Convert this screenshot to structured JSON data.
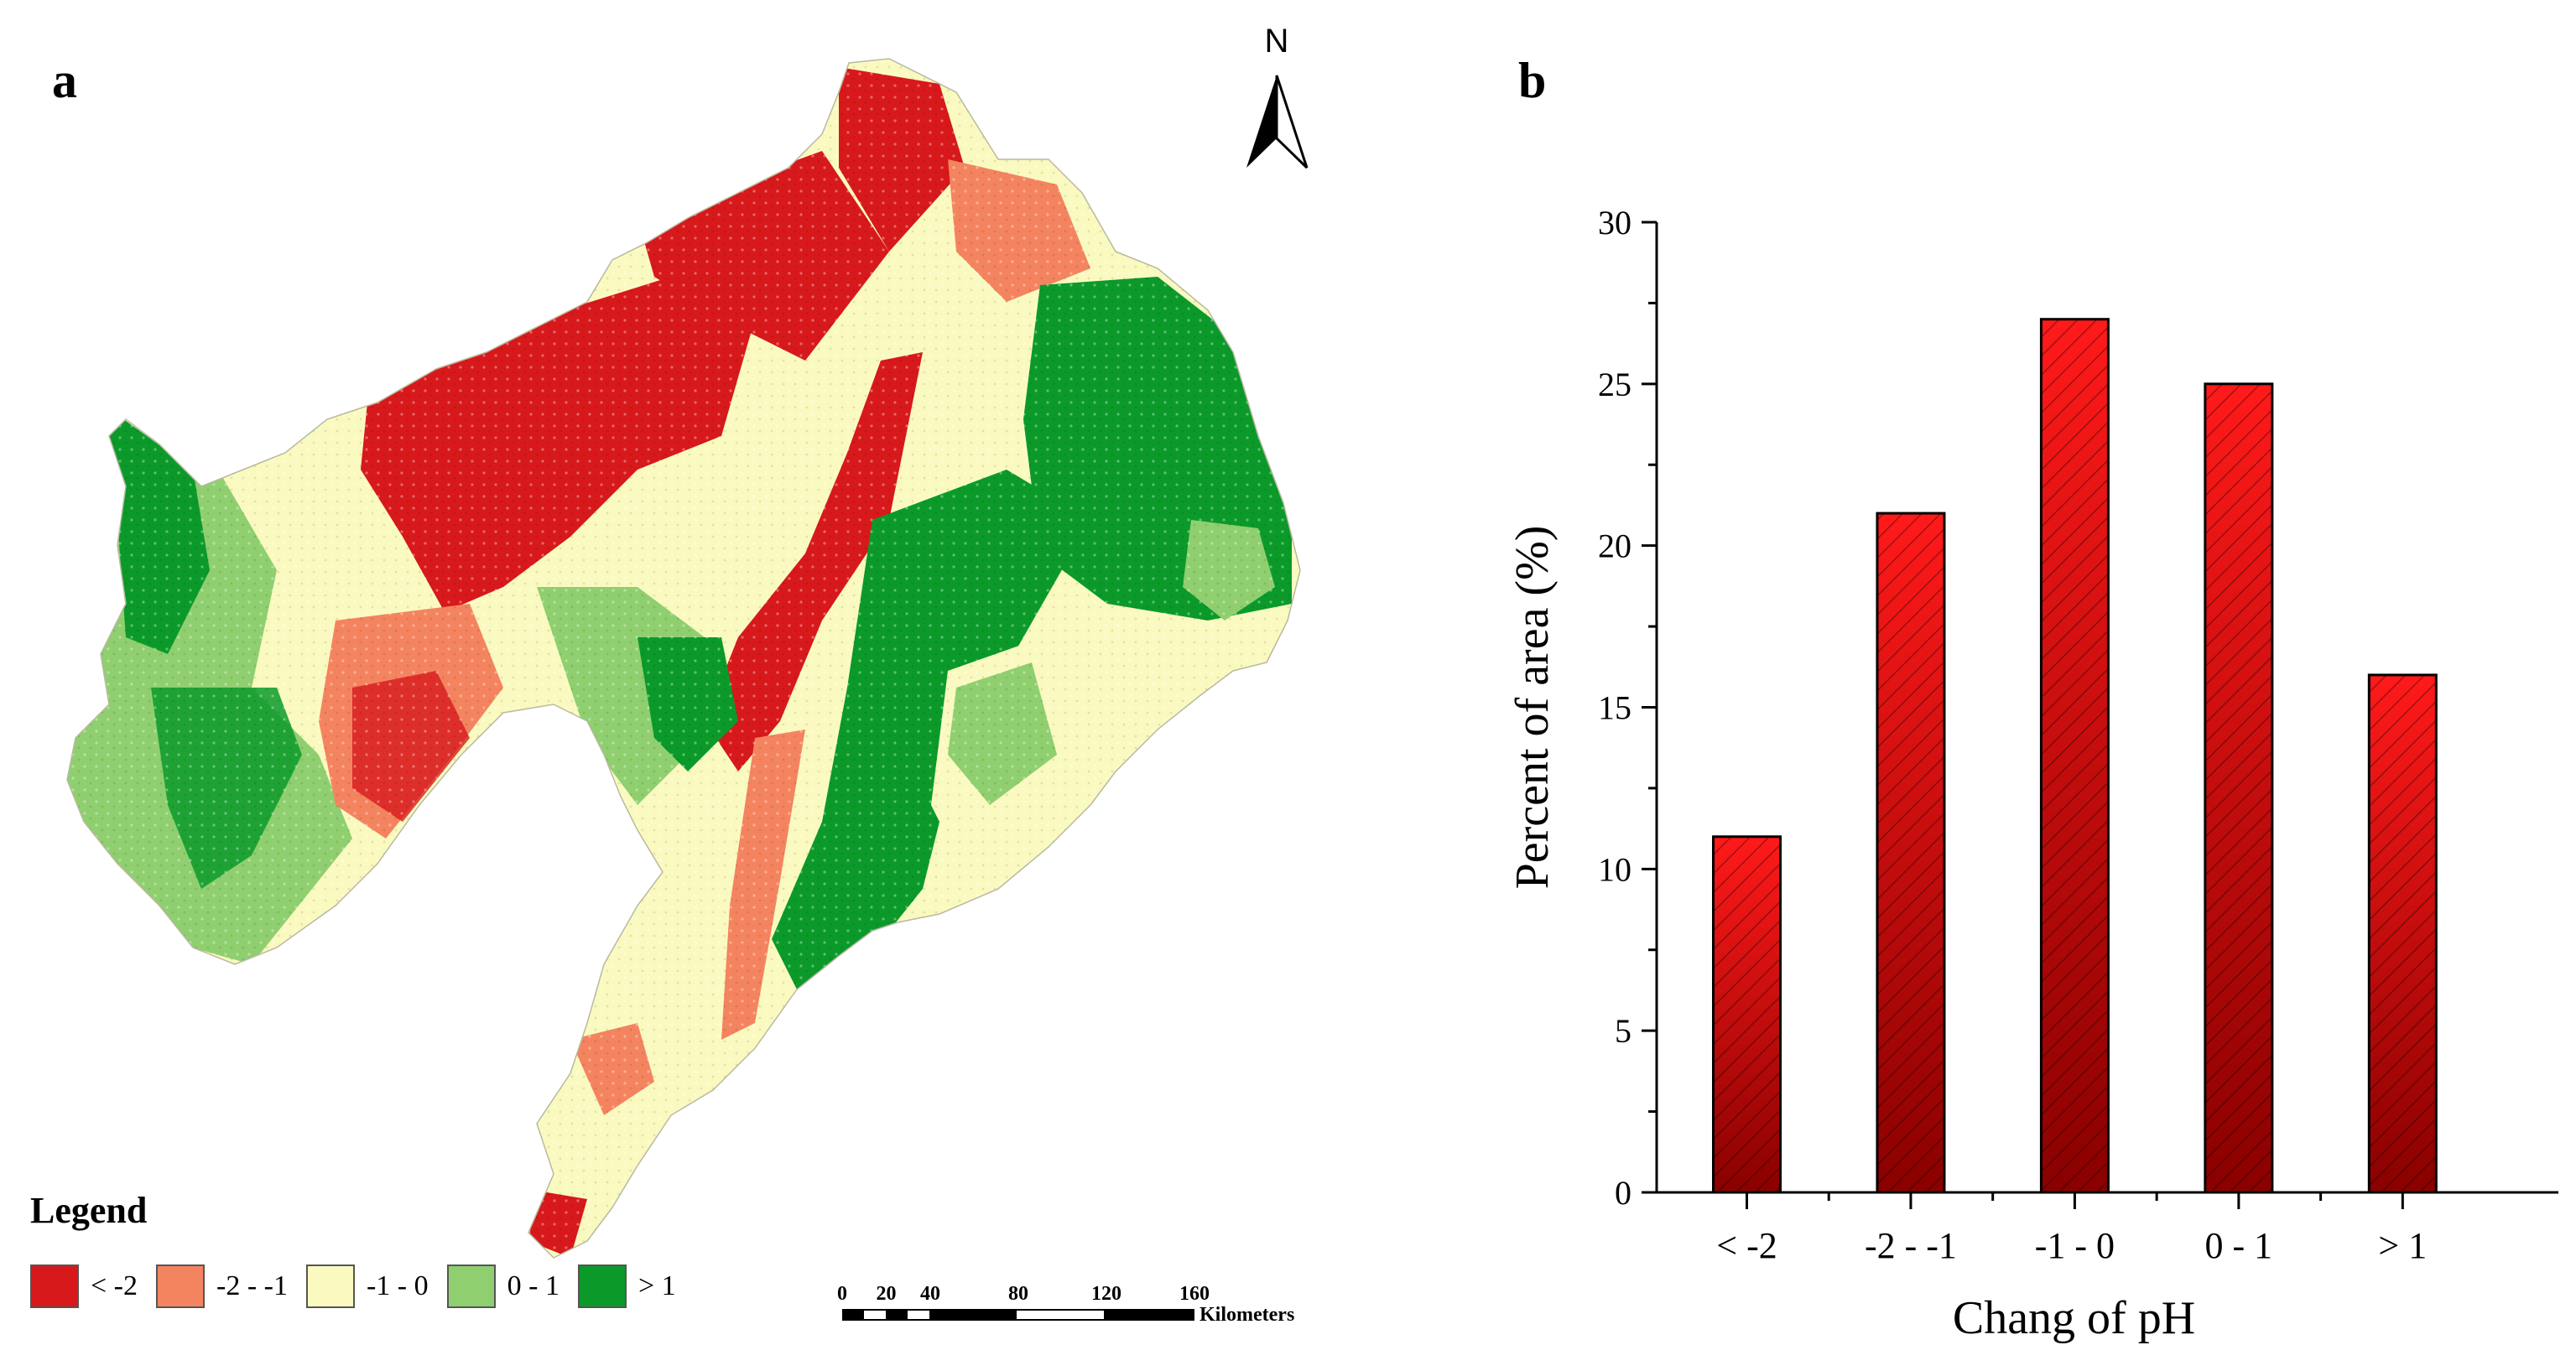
{
  "figure": {
    "panel_a_label": "a",
    "panel_b_label": "b"
  },
  "map": {
    "north_label": "N",
    "legend_title": "Legend",
    "legend": [
      {
        "label": "< -2",
        "color": "#d7191c"
      },
      {
        "label": "-2 - -1",
        "color": "#f4845f"
      },
      {
        "label": "-1 - 0",
        "color": "#fafac0"
      },
      {
        "label": "0 - 1",
        "color": "#8fcf6f"
      },
      {
        "label": "> 1",
        "color": "#0b9a2a"
      }
    ],
    "scale_ticks": [
      "0",
      "20",
      "40",
      "80",
      "120",
      "160"
    ],
    "scale_unit": "Kilometers"
  },
  "chart_data": {
    "type": "bar",
    "title": "",
    "categories": [
      "< -2",
      "-2 - -1",
      "-1 - 0",
      "0 - 1",
      "> 1"
    ],
    "values": [
      11,
      21,
      27,
      25,
      16
    ],
    "xlabel": "Chang of pH",
    "ylabel": "Percent of area (%)",
    "ylim": [
      0,
      30
    ],
    "yticks": [
      "0",
      "5",
      "10",
      "15",
      "20",
      "25",
      "30"
    ],
    "bar_color": "#ff1a1a",
    "bar_color_dark": "#8a0000",
    "grid": false
  }
}
